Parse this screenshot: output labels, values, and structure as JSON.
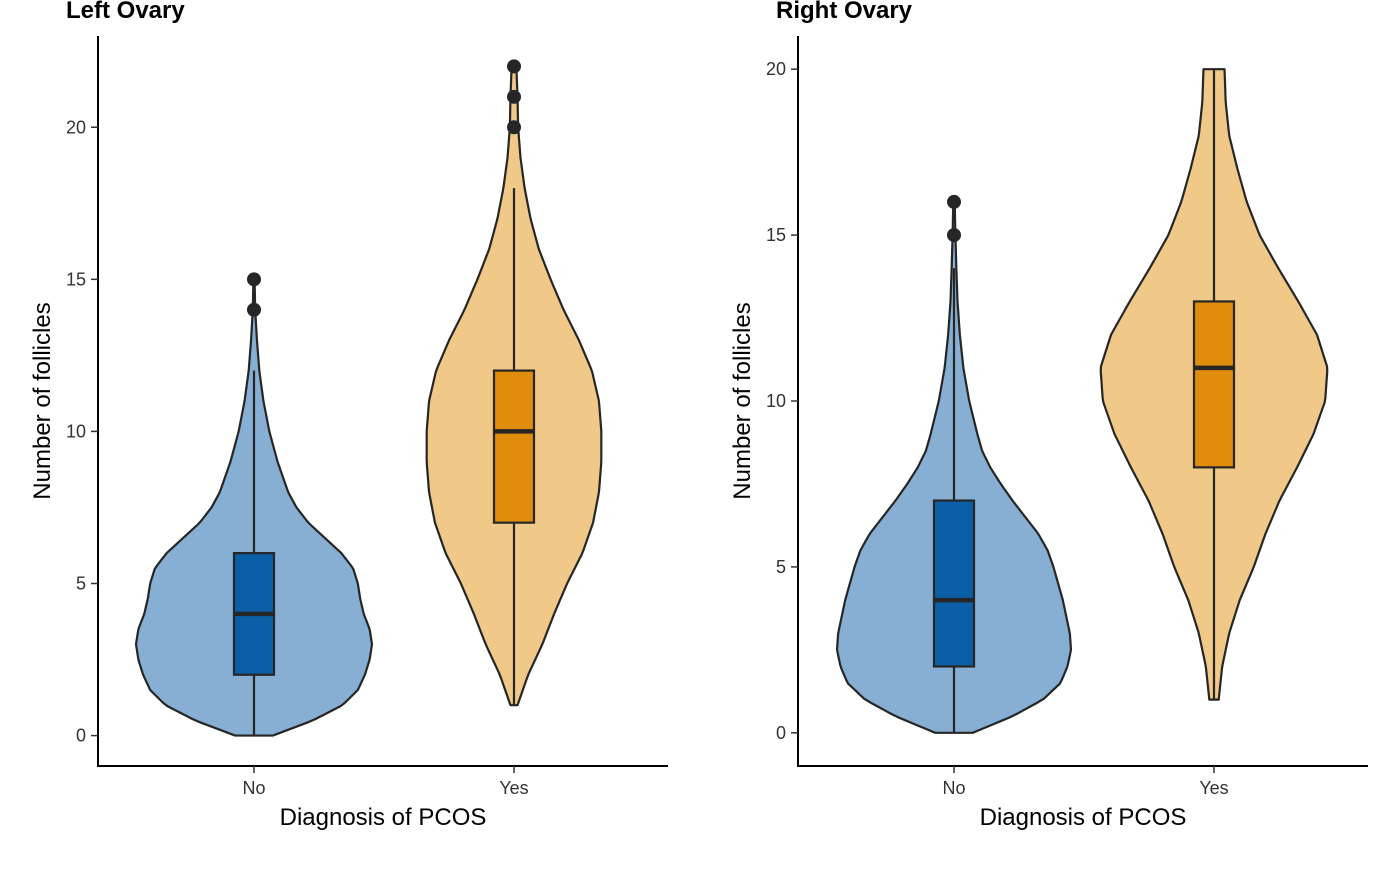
{
  "colors": {
    "no_violin": "#87AED3",
    "no_box": "#0A5FA7",
    "yes_violin": "#F0C888",
    "yes_box": "#E08D0C",
    "outline": "#262626",
    "axis": "#000000"
  },
  "chart_data": [
    {
      "type": "violin",
      "title": "Left Ovary",
      "xlabel": "Diagnosis of PCOS",
      "ylabel": "Number of follicles",
      "categories": [
        "No",
        "Yes"
      ],
      "ylim": [
        -1,
        23
      ],
      "yticks": [
        0,
        5,
        10,
        15,
        20
      ],
      "grid": false,
      "series": [
        {
          "category": "No",
          "box": {
            "q1": 2,
            "median": 4,
            "q3": 6,
            "whisker_low": 0,
            "whisker_high": 12
          },
          "outliers": [
            14,
            15
          ],
          "violin_min": 0,
          "violin_max": 15,
          "density": [
            [
              0,
              0.16
            ],
            [
              0.5,
              0.5
            ],
            [
              1,
              0.75
            ],
            [
              1.5,
              0.88
            ],
            [
              2,
              0.94
            ],
            [
              2.5,
              0.98
            ],
            [
              3,
              1.0
            ],
            [
              3.5,
              0.98
            ],
            [
              4,
              0.93
            ],
            [
              4.5,
              0.9
            ],
            [
              5,
              0.88
            ],
            [
              5.5,
              0.84
            ],
            [
              6,
              0.74
            ],
            [
              6.5,
              0.6
            ],
            [
              7,
              0.46
            ],
            [
              7.5,
              0.36
            ],
            [
              8,
              0.29
            ],
            [
              9,
              0.2
            ],
            [
              10,
              0.13
            ],
            [
              11,
              0.08
            ],
            [
              12,
              0.045
            ],
            [
              13,
              0.025
            ],
            [
              14,
              0.01
            ],
            [
              15,
              0.005
            ]
          ]
        },
        {
          "category": "Yes",
          "box": {
            "q1": 7,
            "median": 10,
            "q3": 12,
            "whisker_low": 1,
            "whisker_high": 18
          },
          "outliers": [
            20,
            21,
            22
          ],
          "violin_min": 1,
          "violin_max": 22,
          "density": [
            [
              1,
              0.03
            ],
            [
              2,
              0.12
            ],
            [
              3,
              0.24
            ],
            [
              4,
              0.34
            ],
            [
              5,
              0.45
            ],
            [
              6,
              0.58
            ],
            [
              7,
              0.67
            ],
            [
              8,
              0.72
            ],
            [
              9,
              0.74
            ],
            [
              10,
              0.74
            ],
            [
              11,
              0.72
            ],
            [
              12,
              0.66
            ],
            [
              13,
              0.55
            ],
            [
              14,
              0.42
            ],
            [
              15,
              0.31
            ],
            [
              16,
              0.21
            ],
            [
              17,
              0.14
            ],
            [
              18,
              0.09
            ],
            [
              19,
              0.055
            ],
            [
              20,
              0.035
            ],
            [
              21,
              0.03
            ],
            [
              22,
              0.02
            ]
          ]
        }
      ]
    },
    {
      "type": "violin",
      "title": "Right Ovary",
      "xlabel": "Diagnosis of PCOS",
      "ylabel": "Number of follicles",
      "categories": [
        "No",
        "Yes"
      ],
      "ylim": [
        -1,
        21
      ],
      "yticks": [
        0,
        5,
        10,
        15,
        20
      ],
      "grid": false,
      "series": [
        {
          "category": "No",
          "box": {
            "q1": 2,
            "median": 4,
            "q3": 7,
            "whisker_low": 0,
            "whisker_high": 14
          },
          "outliers": [
            15,
            16
          ],
          "violin_min": 0,
          "violin_max": 16,
          "density": [
            [
              0,
              0.16
            ],
            [
              0.5,
              0.5
            ],
            [
              1,
              0.76
            ],
            [
              1.5,
              0.91
            ],
            [
              2,
              0.97
            ],
            [
              2.5,
              1.0
            ],
            [
              3,
              0.99
            ],
            [
              3.5,
              0.96
            ],
            [
              4,
              0.93
            ],
            [
              4.5,
              0.89
            ],
            [
              5,
              0.85
            ],
            [
              5.5,
              0.8
            ],
            [
              6,
              0.72
            ],
            [
              6.5,
              0.61
            ],
            [
              7,
              0.5
            ],
            [
              7.5,
              0.4
            ],
            [
              8,
              0.31
            ],
            [
              8.5,
              0.24
            ],
            [
              9,
              0.2
            ],
            [
              10,
              0.13
            ],
            [
              11,
              0.08
            ],
            [
              12,
              0.05
            ],
            [
              13,
              0.03
            ],
            [
              14,
              0.02
            ],
            [
              15,
              0.012
            ],
            [
              16,
              0.006
            ]
          ]
        },
        {
          "category": "Yes",
          "box": {
            "q1": 8,
            "median": 11,
            "q3": 13,
            "whisker_low": 1,
            "whisker_high": 20
          },
          "outliers": [],
          "violin_min": 1,
          "violin_max": 20,
          "density": [
            [
              1,
              0.04
            ],
            [
              2,
              0.07
            ],
            [
              3,
              0.13
            ],
            [
              4,
              0.22
            ],
            [
              5,
              0.34
            ],
            [
              6,
              0.44
            ],
            [
              7,
              0.56
            ],
            [
              8,
              0.71
            ],
            [
              9,
              0.85
            ],
            [
              10,
              0.95
            ],
            [
              11,
              0.97
            ],
            [
              12,
              0.88
            ],
            [
              13,
              0.72
            ],
            [
              14,
              0.55
            ],
            [
              15,
              0.39
            ],
            [
              16,
              0.28
            ],
            [
              17,
              0.2
            ],
            [
              18,
              0.13
            ],
            [
              19,
              0.1
            ],
            [
              20,
              0.09
            ]
          ]
        }
      ]
    }
  ]
}
